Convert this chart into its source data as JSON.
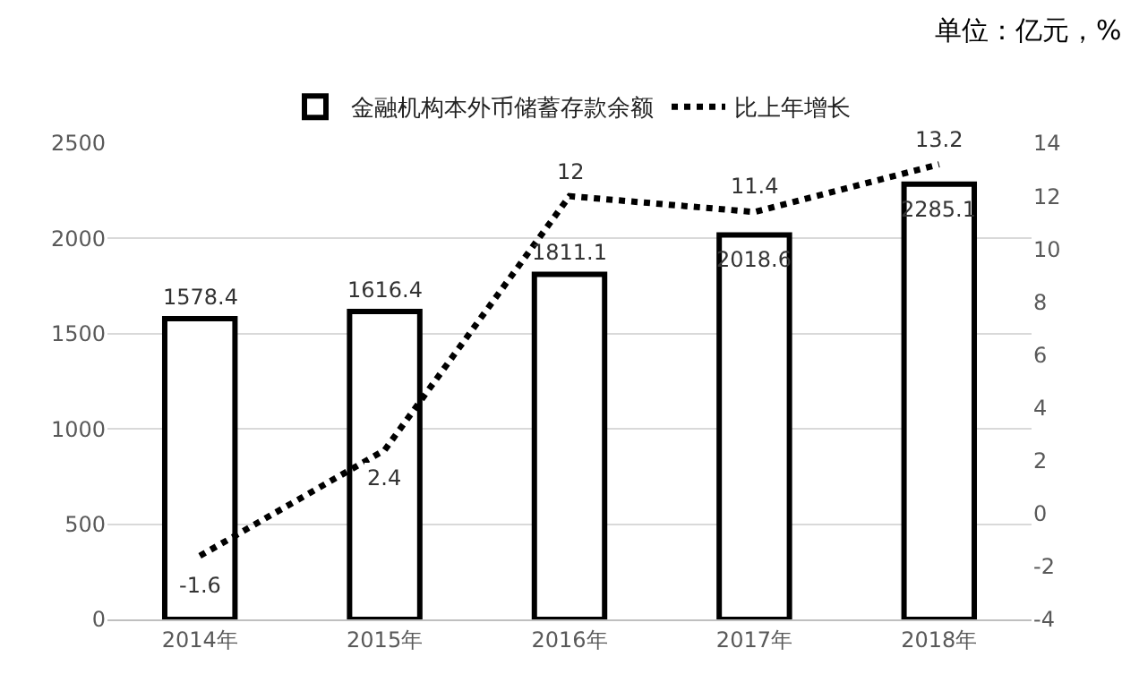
{
  "chart_data": {
    "type": "bar",
    "categories": [
      "2014年",
      "2015年",
      "2016年",
      "2017年",
      "2018年"
    ],
    "series": [
      {
        "name": "金融机构本外币储蓄存款余额",
        "color": "#000000",
        "values": [
          1578.4,
          1616.4,
          1811.1,
          2018.6,
          2285.1
        ]
      },
      {
        "name": "比上年增长",
        "type": "line",
        "axis": "y2",
        "color": "#000000",
        "line_style": "dotted",
        "values": [
          -1.6,
          2.4,
          12,
          11.4,
          13.2
        ]
      }
    ],
    "ylim": [
      0,
      2500
    ],
    "yticks": [
      0,
      500,
      1000,
      1500,
      2000,
      2500
    ],
    "y2lim": [
      -4,
      14
    ],
    "y2ticks": [
      -4,
      -2,
      0,
      2,
      4,
      6,
      8,
      10,
      12,
      14
    ],
    "grid": "y",
    "legend": "top",
    "marker": "none",
    "data_labels": true,
    "annotations": [
      "单位：亿元，%"
    ]
  }
}
